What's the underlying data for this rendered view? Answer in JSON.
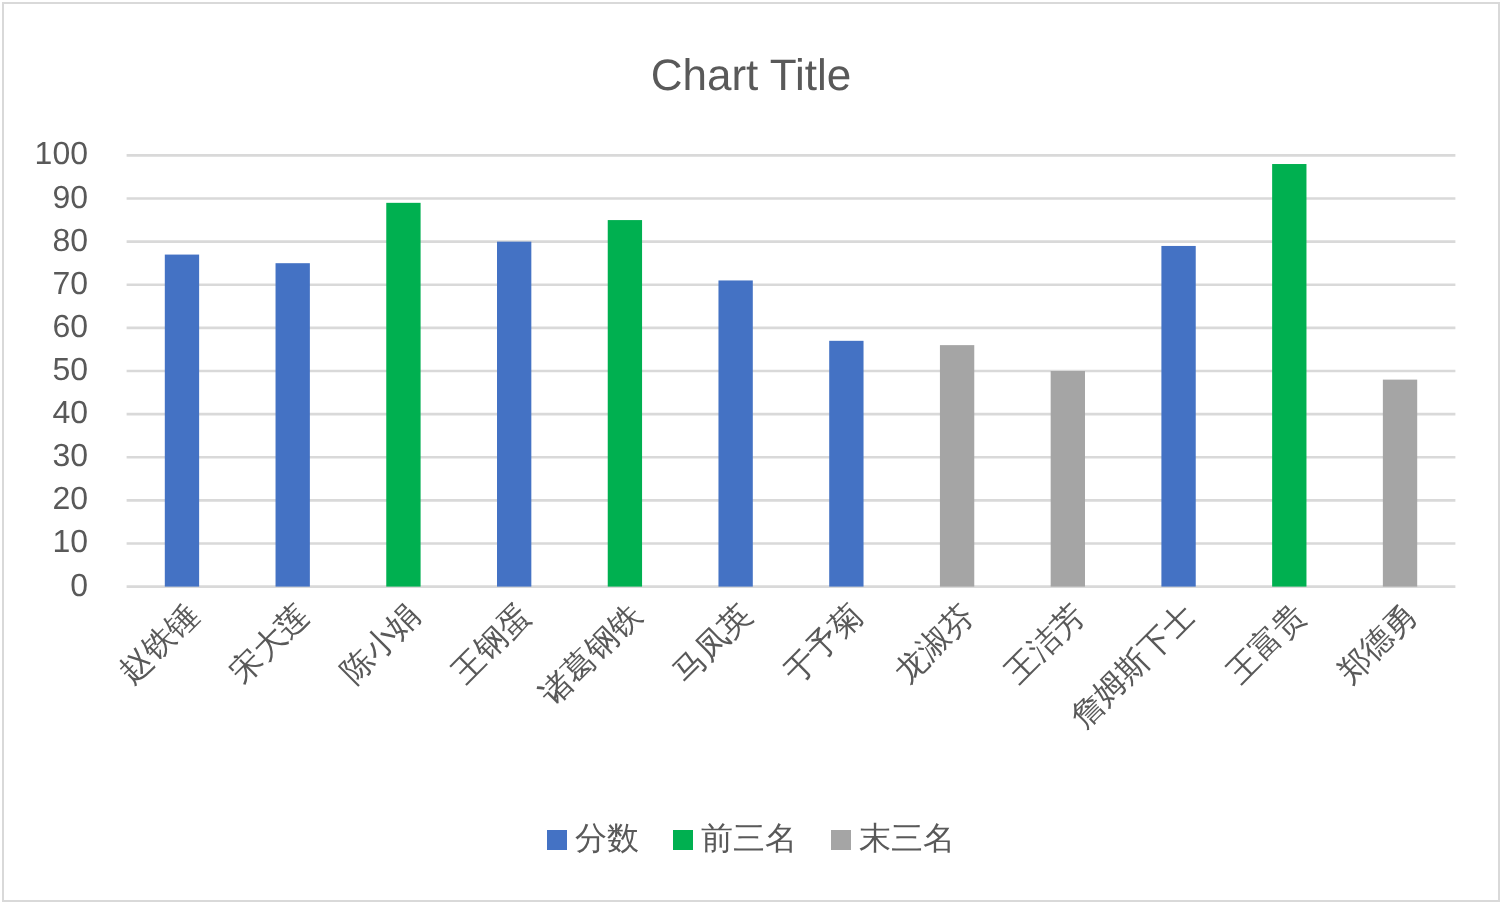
{
  "chart_data": {
    "type": "bar",
    "title": "Chart Title",
    "categories": [
      "赵铁锤",
      "宋大莲",
      "陈小娟",
      "王钢蛋",
      "诸葛钢铁",
      "马凤英",
      "于予菊",
      "龙淑芬",
      "王洁芳",
      "詹姆斯下士",
      "王富贵",
      "郑德勇"
    ],
    "series": [
      {
        "name": "分数",
        "color": "#4472c4",
        "values": [
          77,
          75,
          null,
          80,
          null,
          71,
          57,
          null,
          null,
          79,
          null,
          null
        ]
      },
      {
        "name": "前三名",
        "color": "#00b050",
        "values": [
          null,
          null,
          89,
          null,
          85,
          null,
          null,
          null,
          null,
          null,
          98,
          null
        ]
      },
      {
        "name": "末三名",
        "color": "#a5a5a5",
        "values": [
          null,
          null,
          null,
          null,
          null,
          null,
          null,
          56,
          50,
          null,
          null,
          48
        ]
      }
    ],
    "stacked": true,
    "ylim": [
      0,
      100
    ],
    "yticks": [
      0,
      10,
      20,
      30,
      40,
      50,
      60,
      70,
      80,
      90,
      100
    ],
    "grid": "y",
    "legend": "bottom"
  }
}
